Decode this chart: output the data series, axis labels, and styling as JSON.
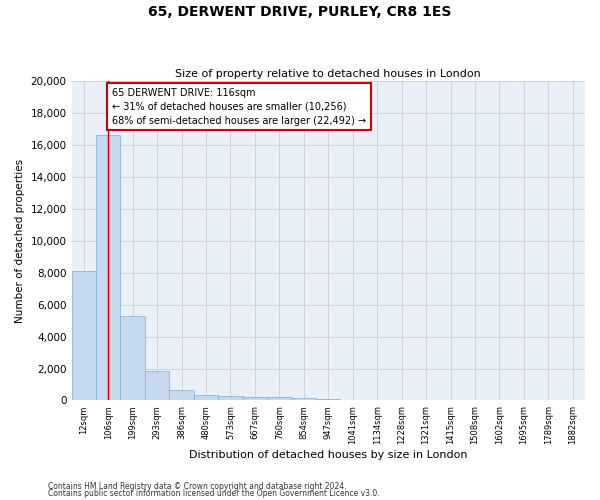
{
  "title": "65, DERWENT DRIVE, PURLEY, CR8 1ES",
  "subtitle": "Size of property relative to detached houses in London",
  "xlabel": "Distribution of detached houses by size in London",
  "ylabel": "Number of detached properties",
  "categories": [
    "12sqm",
    "106sqm",
    "199sqm",
    "293sqm",
    "386sqm",
    "480sqm",
    "573sqm",
    "667sqm",
    "760sqm",
    "854sqm",
    "947sqm",
    "1041sqm",
    "1134sqm",
    "1228sqm",
    "1321sqm",
    "1415sqm",
    "1508sqm",
    "1602sqm",
    "1695sqm",
    "1789sqm",
    "1882sqm"
  ],
  "bar_heights": [
    8100,
    16600,
    5300,
    1850,
    650,
    350,
    280,
    230,
    190,
    170,
    100,
    60,
    40,
    30,
    20,
    15,
    10,
    8,
    5,
    3,
    2
  ],
  "bar_color": "#c5d8ed",
  "bar_edge_color": "#7aafd4",
  "vline_x": 1.0,
  "annotation_line1": "65 DERWENT DRIVE: 116sqm",
  "annotation_line2": "← 31% of detached houses are smaller (10,256)",
  "annotation_line3": "68% of semi-detached houses are larger (22,492) →",
  "annotation_box_color": "#ffffff",
  "annotation_box_edge_color": "#cc0000",
  "vline_color": "#cc0000",
  "ylim": [
    0,
    20000
  ],
  "yticks": [
    0,
    2000,
    4000,
    6000,
    8000,
    10000,
    12000,
    14000,
    16000,
    18000,
    20000
  ],
  "grid_color": "#cccccc",
  "background_color": "#eaf0f8",
  "footnote1": "Contains HM Land Registry data © Crown copyright and database right 2024.",
  "footnote2": "Contains public sector information licensed under the Open Government Licence v3.0."
}
